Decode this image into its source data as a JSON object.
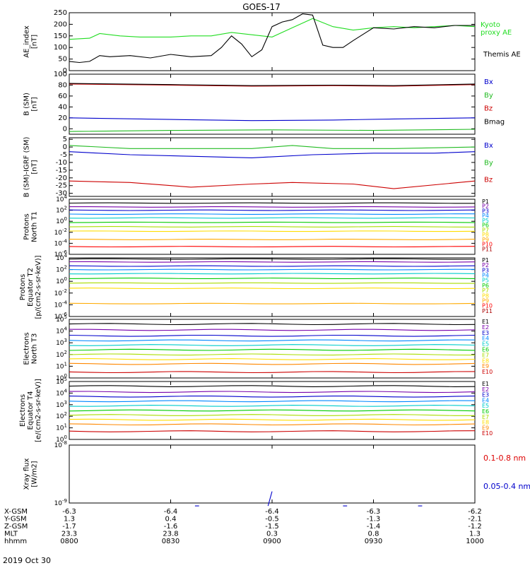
{
  "title": "GOES-17",
  "date_label": "2019 Oct 30",
  "ephemeris": {
    "row_labels": [
      "X-GSM",
      "Y-GSM",
      "Z-GSM",
      "MLT",
      "hhmm"
    ],
    "columns": [
      [
        "-6.3",
        "1.3",
        "-1.7",
        "23.3",
        "0800"
      ],
      [
        "-6.4",
        "0.4",
        "-1.6",
        "23.8",
        "0830"
      ],
      [
        "-6.4",
        "-0.5",
        "-1.5",
        "0.3",
        "0900"
      ],
      [
        "-6.3",
        "-1.3",
        "-1.4",
        "0.8",
        "0930"
      ],
      [
        "-6.2",
        "-2.1",
        "-1.2",
        "1.3",
        "1000"
      ]
    ]
  },
  "chart_data": [
    {
      "type": "line",
      "panel": "ae",
      "ylabel": "AE_index\n[nT]",
      "ylim": [
        0,
        250
      ],
      "yticks": [
        "0",
        "50",
        "100",
        "150",
        "200",
        "250"
      ],
      "xlim_hours": [
        8.0,
        10.0
      ],
      "series": [
        {
          "name": "Kyoto\nproxy AE",
          "color": "#22dd22",
          "x": [
            8.0,
            8.1,
            8.15,
            8.25,
            8.35,
            8.5,
            8.6,
            8.7,
            8.8,
            8.9,
            9.0,
            9.1,
            9.2,
            9.3,
            9.4,
            9.5,
            9.6,
            9.7,
            9.8,
            9.9,
            10.0
          ],
          "y": [
            135,
            140,
            160,
            150,
            145,
            145,
            150,
            150,
            165,
            155,
            145,
            185,
            225,
            190,
            175,
            185,
            190,
            185,
            190,
            195,
            190
          ]
        },
        {
          "name": "Themis AE",
          "color": "#000000",
          "x": [
            8.0,
            8.05,
            8.1,
            8.15,
            8.2,
            8.3,
            8.4,
            8.5,
            8.6,
            8.7,
            8.75,
            8.8,
            8.85,
            8.9,
            8.95,
            9.0,
            9.05,
            9.1,
            9.15,
            9.2,
            9.25,
            9.3,
            9.35,
            9.4,
            9.5,
            9.6,
            9.7,
            9.8,
            9.9,
            10.0
          ],
          "y": [
            40,
            35,
            40,
            65,
            60,
            65,
            55,
            70,
            60,
            65,
            100,
            150,
            115,
            60,
            90,
            190,
            210,
            220,
            245,
            240,
            110,
            100,
            100,
            130,
            185,
            180,
            190,
            185,
            195,
            195
          ]
        }
      ]
    },
    {
      "type": "line",
      "panel": "b_sm",
      "ylabel": "B (SM)\n[nT]",
      "ylim": [
        -10,
        100
      ],
      "yticks": [
        "0",
        "20",
        "40",
        "60",
        "80",
        "100"
      ],
      "series": [
        {
          "name": "Bx",
          "color": "#0000cc",
          "x": [
            8.0,
            8.5,
            8.9,
            9.3,
            9.6,
            10.0
          ],
          "y": [
            20,
            17,
            15,
            16,
            18,
            20
          ]
        },
        {
          "name": "By",
          "color": "#22bb22",
          "x": [
            8.0,
            8.5,
            9.0,
            9.5,
            10.0
          ],
          "y": [
            -5,
            -3,
            -2,
            -3,
            -1
          ]
        },
        {
          "name": "Bz",
          "color": "#cc0000",
          "x": [
            8.0,
            8.5,
            8.9,
            9.3,
            9.6,
            10.0
          ],
          "y": [
            82,
            80,
            78,
            79,
            78,
            81
          ]
        },
        {
          "name": "Bmag",
          "color": "#000000",
          "x": [
            8.0,
            8.5,
            8.9,
            9.3,
            9.6,
            10.0
          ],
          "y": [
            83,
            81,
            79,
            80,
            79,
            82
          ]
        }
      ]
    },
    {
      "type": "line",
      "panel": "b_igrf",
      "ylabel": "B (SM)-IGRF (SM)\n[nT]",
      "ylim": [
        -32,
        6
      ],
      "yticks": [
        "5",
        "0",
        "-5",
        "-10",
        "-15",
        "-20",
        "-25",
        "-30"
      ],
      "series": [
        {
          "name": "Bx",
          "color": "#0000cc",
          "x": [
            8.0,
            8.3,
            8.6,
            8.9,
            9.2,
            9.5,
            9.8,
            10.0
          ],
          "y": [
            -3,
            -5,
            -6,
            -7,
            -5,
            -4,
            -4,
            -3
          ]
        },
        {
          "name": "By",
          "color": "#22bb22",
          "x": [
            8.0,
            8.3,
            8.6,
            8.9,
            9.1,
            9.3,
            9.6,
            10.0
          ],
          "y": [
            1,
            -1,
            -1,
            -1,
            1,
            -1,
            -1,
            0
          ]
        },
        {
          "name": "Bz",
          "color": "#cc0000",
          "x": [
            8.0,
            8.3,
            8.6,
            8.9,
            9.1,
            9.4,
            9.6,
            10.0
          ],
          "y": [
            -22,
            -23,
            -26,
            -24,
            -23,
            -24,
            -27,
            -22
          ]
        }
      ]
    },
    {
      "type": "line",
      "panel": "protons_north",
      "ylabel": "Protons\nNorth T1",
      "ylog": true,
      "ylim_exp": [
        -6,
        4
      ],
      "yticks": [
        "10^4",
        "10^2",
        "10^0",
        "10^-2",
        "10^-4",
        "10^-6"
      ],
      "channels": [
        "P1",
        "P2",
        "P3",
        "P4",
        "P5",
        "P6",
        "P7",
        "P8",
        "P9",
        "P10",
        "P11"
      ],
      "channel_colors": [
        "#000000",
        "#7700aa",
        "#0000cc",
        "#0088ff",
        "#00cccc",
        "#00cc00",
        "#aadd00",
        "#ffdd00",
        "#ffaa00",
        "#ff0000",
        "#aa0000"
      ],
      "levels_exp": [
        3.3,
        2.6,
        2.0,
        1.3,
        0.6,
        -0.2,
        -1.0,
        -1.8,
        -3.3,
        -4.6,
        null
      ]
    },
    {
      "type": "line",
      "panel": "protons_equator",
      "ylabel": "Protons\nEquator T2\n[p/(cm2-s-sr-keV)]",
      "ylog": true,
      "ylim_exp": [
        -6,
        4
      ],
      "yticks": [
        "10^4",
        "10^2",
        "10^0",
        "10^-2",
        "10^-4",
        "10^-6"
      ],
      "channels": [
        "P1",
        "P2",
        "P3",
        "P4",
        "P5",
        "P6",
        "P7",
        "P8",
        "P9",
        "P10",
        "P11"
      ],
      "channel_colors": [
        "#000000",
        "#7700aa",
        "#0000cc",
        "#0088ff",
        "#00cccc",
        "#00cc00",
        "#aadd00",
        "#ffdd00",
        "#ffaa00",
        "#ff0000",
        "#aa0000"
      ],
      "levels_exp": [
        3.8,
        3.3,
        2.6,
        2.0,
        1.3,
        0.5,
        -0.3,
        -1.2,
        -3.8,
        null,
        null
      ]
    },
    {
      "type": "line",
      "panel": "electrons_north",
      "ylabel": "Electrons\nNorth T3",
      "ylog": true,
      "ylim_exp": [
        0,
        5
      ],
      "yticks": [
        "10^5",
        "10^4",
        "10^3",
        "10^2",
        "10^1",
        "10^0"
      ],
      "channels": [
        "E1",
        "E2",
        "E3",
        "E4",
        "E5",
        "E6",
        "E7",
        "E8",
        "E9",
        "E10"
      ],
      "channel_colors": [
        "#000000",
        "#7700aa",
        "#0000cc",
        "#0088ff",
        "#00cccc",
        "#00cc00",
        "#aadd00",
        "#ffdd00",
        "#ff8800",
        "#cc0000"
      ],
      "levels_exp": [
        4.6,
        4.1,
        3.6,
        3.2,
        2.8,
        2.4,
        2.0,
        1.6,
        1.2,
        0.5
      ]
    },
    {
      "type": "line",
      "panel": "electrons_equator",
      "ylabel": "Electrons\nEquator T4\n[e/(cm2-s-sr-keV)]",
      "ylog": true,
      "ylim_exp": [
        0,
        5
      ],
      "yticks": [
        "10^5",
        "10^4",
        "10^3",
        "10^2",
        "10^1",
        "10^0"
      ],
      "channels": [
        "E1",
        "E2",
        "E3",
        "E4",
        "E5",
        "E6",
        "E7",
        "E8",
        "E9",
        "E10"
      ],
      "channel_colors": [
        "#000000",
        "#7700aa",
        "#0000cc",
        "#0088ff",
        "#00cccc",
        "#00cc00",
        "#aadd00",
        "#ffdd00",
        "#ff8800",
        "#cc0000"
      ],
      "levels_exp": [
        4.6,
        4.1,
        3.7,
        3.3,
        2.9,
        2.5,
        2.1,
        1.7,
        1.3,
        0.7
      ]
    },
    {
      "type": "line",
      "panel": "xray",
      "ylabel": "Xray flux\n[W/m2]",
      "ylog": true,
      "ylim_exp": [
        -9,
        -8
      ],
      "yticks": [
        "10^-8",
        "10^-9"
      ],
      "series": [
        {
          "name": "0.1-0.8 nm",
          "color": "#dd0000"
        },
        {
          "name": "0.05-0.4 nm",
          "color": "#0000cc"
        }
      ],
      "segments": [
        {
          "x": [
            8.62,
            8.64
          ],
          "y_exp": [
            -9.85,
            -9.8
          ]
        },
        {
          "x": [
            8.98,
            9.0
          ],
          "y_exp": [
            -9.4,
            -8.8
          ]
        },
        {
          "x": [
            9.35,
            9.37
          ],
          "y_exp": [
            -9.45,
            -10.0
          ]
        },
        {
          "x": [
            9.72,
            9.74
          ],
          "y_exp": [
            -9.4,
            -9.15
          ]
        }
      ]
    }
  ]
}
